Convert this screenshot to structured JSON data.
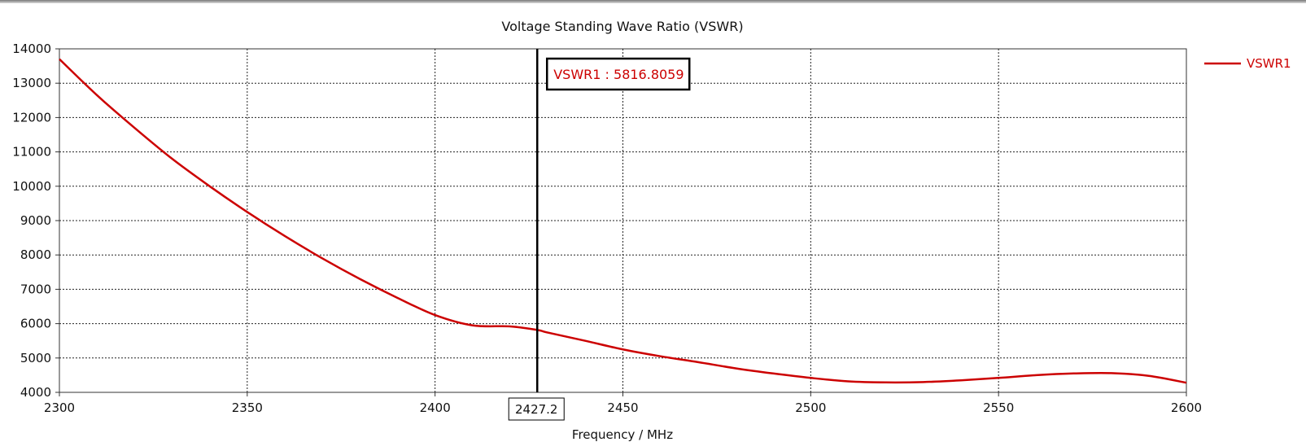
{
  "chart_data": {
    "type": "line",
    "title": "Voltage Standing Wave Ratio (VSWR)",
    "xlabel": "Frequency / MHz",
    "ylabel": "",
    "xlim": [
      2300,
      2600
    ],
    "ylim": [
      4000,
      14000
    ],
    "x_ticks": [
      2300,
      2350,
      2400,
      2450,
      2500,
      2550,
      2600
    ],
    "y_ticks": [
      4000,
      5000,
      6000,
      7000,
      8000,
      9000,
      10000,
      11000,
      12000,
      13000,
      14000
    ],
    "grid": true,
    "legend_position": "right",
    "series": [
      {
        "name": "VSWR1",
        "color": "#cc0000",
        "x": [
          2300,
          2310,
          2320,
          2330,
          2340,
          2350,
          2360,
          2370,
          2380,
          2390,
          2400,
          2410,
          2420,
          2427.2,
          2430,
          2440,
          2450,
          2460,
          2470,
          2480,
          2490,
          2500,
          2510,
          2520,
          2530,
          2540,
          2550,
          2560,
          2570,
          2580,
          2590,
          2600
        ],
        "y": [
          13700,
          12650,
          11700,
          10800,
          10000,
          9250,
          8550,
          7900,
          7300,
          6750,
          6250,
          5950,
          5920,
          5816.8,
          5740,
          5500,
          5250,
          5050,
          4880,
          4700,
          4550,
          4420,
          4320,
          4290,
          4300,
          4350,
          4420,
          4500,
          4550,
          4560,
          4480,
          4280
        ]
      }
    ],
    "marker": {
      "x": 2427.2,
      "x_label": "2427.2",
      "readout": "VSWR1 : 5816.8059",
      "color": "#cc0000"
    }
  }
}
